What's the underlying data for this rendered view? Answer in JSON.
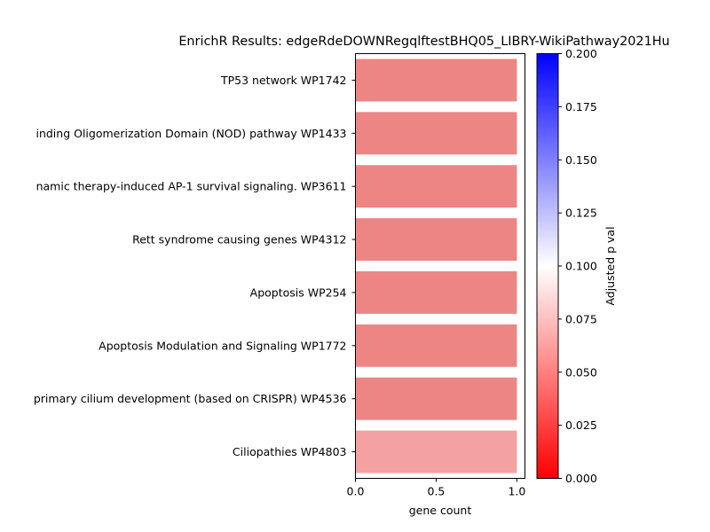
{
  "chart_data": {
    "type": "bar",
    "orientation": "horizontal",
    "title": "EnrichR Results: edgeRdeDOWNRegqlftestBHQ05_LIBRY-WikiPathway2021Hu",
    "xlabel": "gene count",
    "ylabel": "",
    "xlim": [
      0,
      1.05
    ],
    "xticks": [
      {
        "value": 0.0,
        "label": "0.0"
      },
      {
        "value": 0.5,
        "label": "0.5"
      },
      {
        "value": 1.0,
        "label": "1.0"
      }
    ],
    "categories": [
      "TP53 network WP1742",
      "inding Oligomerization Domain (NOD) pathway WP1433",
      "namic therapy-induced AP-1 survival signaling. WP3611",
      "Rett syndrome causing genes WP4312",
      "Apoptosis WP254",
      "Apoptosis Modulation and Signaling WP1772",
      "primary cilium development (based on CRISPR) WP4536",
      "Ciliopathies WP4803"
    ],
    "values": [
      1,
      1,
      1,
      1,
      1,
      1,
      1,
      1
    ],
    "adjusted_p_values": [
      0.044,
      0.044,
      0.044,
      0.044,
      0.044,
      0.044,
      0.044,
      0.061
    ],
    "colors": [
      "#ee8585",
      "#ee8585",
      "#ee8585",
      "#ee8585",
      "#ee8585",
      "#ee8585",
      "#ee8585",
      "#f3a1a1"
    ],
    "colorbar": {
      "label": "Adjusted p val",
      "range": [
        0,
        0.2
      ],
      "colormap": [
        "#ff0000",
        "#ffffff",
        "#0000ff"
      ],
      "ticks": [
        {
          "value": 0.0,
          "label": "0.000"
        },
        {
          "value": 0.025,
          "label": "0.025"
        },
        {
          "value": 0.05,
          "label": "0.050"
        },
        {
          "value": 0.075,
          "label": "0.075"
        },
        {
          "value": 0.1,
          "label": "0.100"
        },
        {
          "value": 0.125,
          "label": "0.125"
        },
        {
          "value": 0.15,
          "label": "0.150"
        },
        {
          "value": 0.175,
          "label": "0.175"
        },
        {
          "value": 0.2,
          "label": "0.200"
        }
      ]
    },
    "grid": false,
    "legend": "none"
  }
}
